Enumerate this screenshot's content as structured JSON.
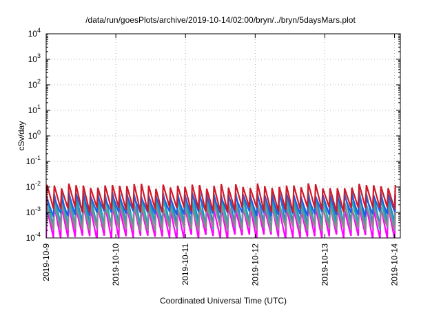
{
  "chart_data": {
    "type": "line",
    "title": "/data/run/goesPlots/archive/2019-10-14/02:00/bryn/../bryn/5daysMars.plot",
    "xlabel": "Coordinated Universal Time (UTC)",
    "ylabel": "cSv/day",
    "yscale": "log",
    "xlim": [
      "2019-10-09T00:00",
      "2019-10-14T02:00"
    ],
    "ylim": [
      0.0001,
      10000
    ],
    "grid": true,
    "x_ticks": [
      "2019-10-9",
      "2019-10-10",
      "2019-10-11",
      "2019-10-12",
      "2019-10-13",
      "2019-10-14"
    ],
    "y_ticks": [
      {
        "base": "10",
        "exp": "-4"
      },
      {
        "base": "10",
        "exp": "-3"
      },
      {
        "base": "10",
        "exp": "-2"
      },
      {
        "base": "10",
        "exp": "-1"
      },
      {
        "base": "10",
        "exp": "0"
      },
      {
        "base": "10",
        "exp": "1"
      },
      {
        "base": "10",
        "exp": "2"
      },
      {
        "base": "10",
        "exp": "3"
      },
      {
        "base": "10",
        "exp": "4"
      }
    ],
    "y_tick_values": [
      0.0001,
      0.001,
      0.01,
      0.1,
      1,
      10,
      100,
      1000,
      10000
    ],
    "sawtooth_period_hours": 2.5,
    "series": [
      {
        "color": "#ff00ff",
        "peak": 0.0015,
        "trough": 0.00011
      },
      {
        "color": "#2b7fd0",
        "peak": 0.0055,
        "trough": 0.00035
      },
      {
        "color": "#1ab0b0",
        "peak": 0.0028,
        "trough": 0.00028
      },
      {
        "color": "#8a8a8a",
        "peak": 0.0018,
        "trough": 0.00022
      },
      {
        "color": "#1e5fe0",
        "peak": 0.0045,
        "trough": 0.0009
      },
      {
        "color": "#d01828",
        "peak": 0.011,
        "trough": 0.0013
      }
    ]
  }
}
